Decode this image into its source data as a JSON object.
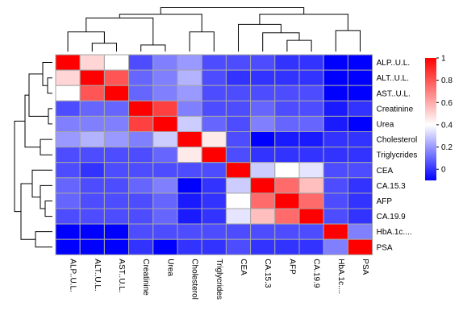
{
  "chart_data": {
    "type": "heatmap",
    "title": "",
    "rows": [
      "ALP..U.L.",
      "ALT..U.L.",
      "AST..U.L.",
      "Creatinine",
      "Urea",
      "Cholesterol",
      "Triglycrides",
      "CEA",
      "CA.15.3",
      "AFP",
      "CA.19.9",
      "HbA.1c....",
      "PSA"
    ],
    "columns": [
      "ALP..U.L.",
      "ALT..U.L.",
      "AST..U.L.",
      "Creatinine",
      "Urea",
      "Cholesterol",
      "Triglycrides",
      "CEA",
      "CA.15.3",
      "AFP",
      "CA.19.9",
      "HbA.1c....",
      "PSA"
    ],
    "values": [
      [
        1.0,
        0.5,
        0.4,
        0.05,
        0.15,
        0.2,
        0.05,
        0.05,
        0.05,
        0.0,
        0.0,
        -0.1,
        -0.1
      ],
      [
        0.5,
        1.0,
        0.8,
        0.1,
        0.15,
        0.25,
        0.05,
        0.0,
        0.0,
        0.0,
        0.0,
        -0.1,
        -0.1
      ],
      [
        0.4,
        0.8,
        1.0,
        0.1,
        0.15,
        0.2,
        0.05,
        0.05,
        0.05,
        0.05,
        0.05,
        -0.1,
        -0.1
      ],
      [
        0.05,
        0.1,
        0.1,
        1.0,
        0.85,
        0.15,
        0.05,
        0.05,
        0.1,
        0.05,
        0.05,
        -0.05,
        0.0
      ],
      [
        0.15,
        0.15,
        0.15,
        0.85,
        1.0,
        0.3,
        0.1,
        0.05,
        0.15,
        0.1,
        0.1,
        -0.05,
        -0.1
      ],
      [
        0.2,
        0.25,
        0.2,
        0.15,
        0.3,
        1.0,
        0.45,
        0.05,
        -0.1,
        -0.05,
        -0.05,
        0.0,
        0.0
      ],
      [
        0.05,
        0.05,
        0.05,
        0.05,
        0.1,
        0.45,
        1.0,
        0.05,
        0.0,
        0.0,
        0.0,
        0.0,
        0.0
      ],
      [
        0.05,
        0.0,
        0.05,
        0.05,
        0.05,
        0.05,
        0.05,
        1.0,
        0.3,
        0.4,
        0.35,
        0.05,
        0.05
      ],
      [
        0.1,
        0.05,
        0.05,
        0.1,
        0.15,
        -0.1,
        0.0,
        0.3,
        1.0,
        0.75,
        0.55,
        0.05,
        0.0
      ],
      [
        0.1,
        0.05,
        0.05,
        0.05,
        0.1,
        -0.05,
        0.0,
        0.4,
        0.75,
        1.0,
        0.75,
        0.05,
        0.0
      ],
      [
        0.05,
        0.05,
        0.05,
        0.05,
        0.1,
        -0.05,
        0.0,
        0.35,
        0.55,
        0.75,
        1.0,
        0.05,
        0.0
      ],
      [
        -0.1,
        -0.1,
        -0.1,
        0.05,
        0.05,
        0.05,
        0.05,
        0.05,
        0.05,
        0.05,
        0.05,
        1.0,
        0.15
      ],
      [
        -0.1,
        -0.1,
        -0.1,
        0.0,
        -0.1,
        0.0,
        0.0,
        0.05,
        0.0,
        0.0,
        0.0,
        0.15,
        1.0
      ]
    ],
    "color_scale": {
      "min": -0.1,
      "max": 1.0,
      "stops": [
        {
          "value": -0.1,
          "color": "#0000ff"
        },
        {
          "value": 0.4,
          "color": "#ffffff"
        },
        {
          "value": 1.0,
          "color": "#ff0000"
        }
      ],
      "ticks": [
        "1",
        "0.8",
        "0.6",
        "0.4",
        "0.2",
        "0"
      ],
      "tick_values": [
        1.0,
        0.8,
        0.6,
        0.4,
        0.2,
        0.0
      ]
    },
    "legend_placement": "right",
    "row_labels_position": "right",
    "column_labels_position": "bottom",
    "dendrograms": [
      "top",
      "left"
    ],
    "grid": true,
    "cell_border_color": "#a6a6a6"
  }
}
